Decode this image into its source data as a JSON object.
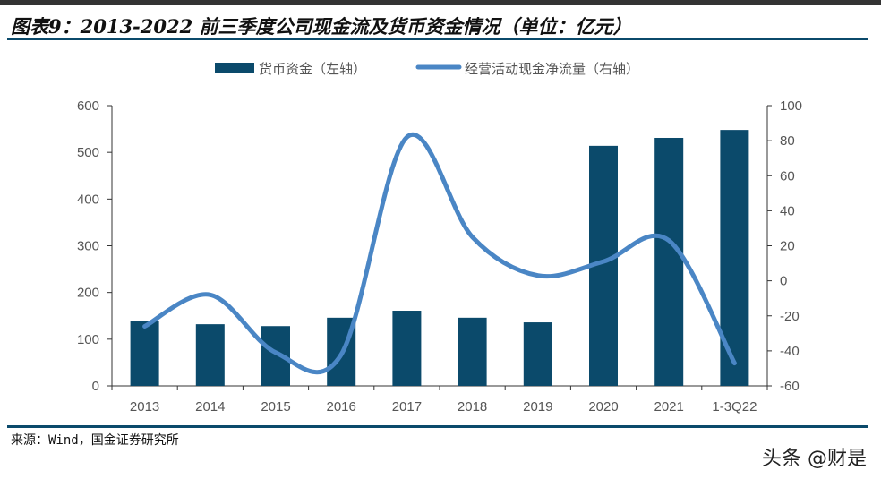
{
  "title": "图表9：2013-2022 前三季度公司现金流及货币资金情况（单位：亿元）",
  "source": "来源：Wind，国金证券研究所",
  "watermark": "头条 @财是",
  "colors": {
    "bar": "#0b4a6b",
    "line": "#4a86c5",
    "rule": "#0b4a6b"
  },
  "chart_data": {
    "type": "bar+line",
    "categories": [
      "2013",
      "2014",
      "2015",
      "2016",
      "2017",
      "2018",
      "2019",
      "2020",
      "2021",
      "1-3Q22"
    ],
    "series": [
      {
        "name": "货币资金（左轴）",
        "type": "bar",
        "axis": "left",
        "values": [
          138,
          132,
          128,
          146,
          161,
          146,
          136,
          514,
          531,
          548
        ]
      },
      {
        "name": "经营活动现金净流量（右轴）",
        "type": "line",
        "axis": "right",
        "smooth": true,
        "values": [
          -26,
          -8,
          -41,
          -42,
          82,
          25,
          3,
          11,
          23,
          -47
        ]
      }
    ],
    "yleft": {
      "range": [
        0,
        600
      ],
      "ticks": [
        "0",
        "100",
        "200",
        "300",
        "400",
        "500",
        "600"
      ]
    },
    "yright": {
      "range": [
        -60,
        100
      ],
      "ticks": [
        "-60",
        "-40",
        "-20",
        "0",
        "20",
        "40",
        "60",
        "80",
        "100"
      ]
    },
    "grid": false,
    "legend": "top"
  }
}
